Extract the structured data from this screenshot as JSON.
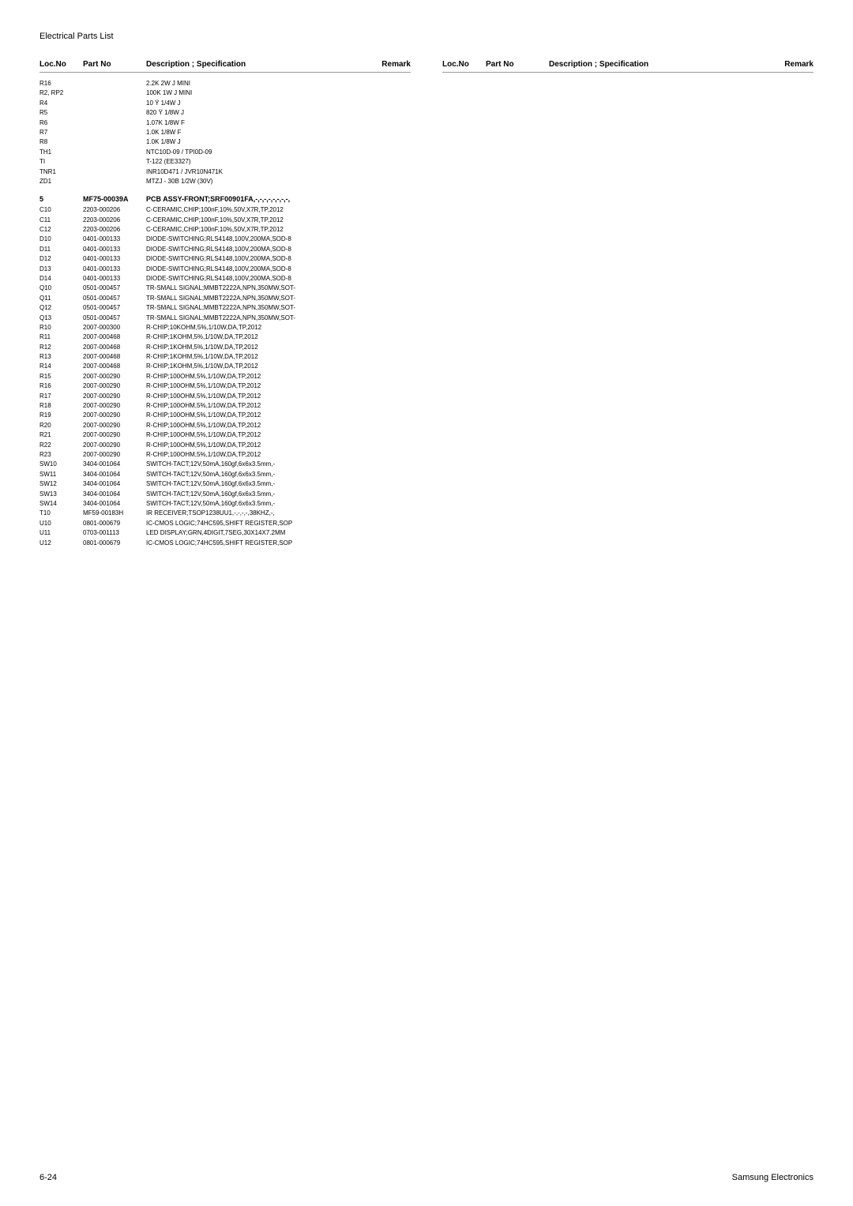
{
  "title": "Electrical Parts List",
  "headers": {
    "loc": "Loc.No",
    "part": "Part No",
    "desc": "Description ; Specification",
    "remark": "Remark"
  },
  "rows_a": [
    {
      "loc": "R16",
      "part": "",
      "desc": "2.2K 2W J MINI"
    },
    {
      "loc": "R2, RP2",
      "part": "",
      "desc": "100K 1W J MINI"
    },
    {
      "loc": "R4",
      "part": "",
      "desc": "10 Ÿ 1/4W J"
    },
    {
      "loc": "R5",
      "part": "",
      "desc": "820 Ÿ 1/8W J"
    },
    {
      "loc": "R6",
      "part": "",
      "desc": "1.07K 1/8W F"
    },
    {
      "loc": "R7",
      "part": "",
      "desc": "1.0K 1/8W F"
    },
    {
      "loc": "R8",
      "part": "",
      "desc": "1.0K 1/8W J"
    },
    {
      "loc": "TH1",
      "part": "",
      "desc": "NTC10D-09 / TPI0D-09"
    },
    {
      "loc": "TI",
      "part": "",
      "desc": "T-122 (EE3327)"
    },
    {
      "loc": "TNR1",
      "part": "",
      "desc": "INR10D471 / JVR10N471K"
    },
    {
      "loc": "ZD1",
      "part": "",
      "desc": "MTZJ - 30B 1/2W (30V)"
    }
  ],
  "section": {
    "loc": "5",
    "part": "MF75-00039A",
    "desc": "PCB ASSY-FRONT;SRF00901FA,-,-,-,-,-,-,-,-,"
  },
  "rows_b": [
    {
      "loc": "C10",
      "part": "2203-000206",
      "desc": "C-CERAMIC,CHIP;100nF,10%,50V,X7R,TP,2012"
    },
    {
      "loc": "C11",
      "part": "2203-000206",
      "desc": "C-CERAMIC,CHIP;100nF,10%,50V,X7R,TP,2012"
    },
    {
      "loc": "C12",
      "part": "2203-000206",
      "desc": "C-CERAMIC,CHIP;100nF,10%,50V,X7R,TP,2012"
    },
    {
      "loc": "D10",
      "part": "0401-000133",
      "desc": "DIODE-SWITCHING;RLS4148,100V,200MA,SOD-8"
    },
    {
      "loc": "D11",
      "part": "0401-000133",
      "desc": "DIODE-SWITCHING;RLS4148,100V,200MA,SOD-8"
    },
    {
      "loc": "D12",
      "part": "0401-000133",
      "desc": "DIODE-SWITCHING;RLS4148,100V,200MA,SOD-8"
    },
    {
      "loc": "D13",
      "part": "0401-000133",
      "desc": "DIODE-SWITCHING;RLS4148,100V,200MA,SOD-8"
    },
    {
      "loc": "D14",
      "part": "0401-000133",
      "desc": "DIODE-SWITCHING;RLS4148,100V,200MA,SOD-8"
    },
    {
      "loc": "Q10",
      "part": "0501-000457",
      "desc": "TR-SMALL SIGNAL;MMBT2222A,NPN,350MW,SOT-"
    },
    {
      "loc": "Q11",
      "part": "0501-000457",
      "desc": "TR-SMALL SIGNAL;MMBT2222A,NPN,350MW,SOT-"
    },
    {
      "loc": "Q12",
      "part": "0501-000457",
      "desc": "TR-SMALL SIGNAL;MMBT2222A,NPN,350MW,SOT-"
    },
    {
      "loc": "Q13",
      "part": "0501-000457",
      "desc": "TR-SMALL SIGNAL;MMBT2222A,NPN,350MW,SOT-"
    },
    {
      "loc": "R10",
      "part": "2007-000300",
      "desc": "R-CHIP;10KOHM,5%,1/10W,DA,TP,2012"
    },
    {
      "loc": "R11",
      "part": "2007-000468",
      "desc": "R-CHIP;1KOHM,5%,1/10W,DA,TP,2012"
    },
    {
      "loc": "R12",
      "part": "2007-000468",
      "desc": "R-CHIP;1KOHM,5%,1/10W,DA,TP,2012"
    },
    {
      "loc": "R13",
      "part": "2007-000468",
      "desc": "R-CHIP;1KOHM,5%,1/10W,DA,TP,2012"
    },
    {
      "loc": "R14",
      "part": "2007-000468",
      "desc": "R-CHIP;1KOHM,5%,1/10W,DA,TP,2012"
    },
    {
      "loc": "R15",
      "part": "2007-000290",
      "desc": "R-CHIP;100OHM,5%,1/10W,DA,TP,2012"
    },
    {
      "loc": "R16",
      "part": "2007-000290",
      "desc": "R-CHIP;100OHM,5%,1/10W,DA,TP,2012"
    },
    {
      "loc": "R17",
      "part": "2007-000290",
      "desc": "R-CHIP;100OHM,5%,1/10W,DA,TP,2012"
    },
    {
      "loc": "R18",
      "part": "2007-000290",
      "desc": "R-CHIP;100OHM,5%,1/10W,DA,TP,2012"
    },
    {
      "loc": "R19",
      "part": "2007-000290",
      "desc": "R-CHIP;100OHM,5%,1/10W,DA,TP,2012"
    },
    {
      "loc": "R20",
      "part": "2007-000290",
      "desc": "R-CHIP;100OHM,5%,1/10W,DA,TP,2012"
    },
    {
      "loc": "R21",
      "part": "2007-000290",
      "desc": "R-CHIP;100OHM,5%,1/10W,DA,TP,2012"
    },
    {
      "loc": "R22",
      "part": "2007-000290",
      "desc": "R-CHIP;100OHM,5%,1/10W,DA,TP,2012"
    },
    {
      "loc": "R23",
      "part": "2007-000290",
      "desc": "R-CHIP;100OHM,5%,1/10W,DA,TP,2012"
    },
    {
      "loc": "SW10",
      "part": "3404-001064",
      "desc": "SWITCH-TACT;12V,50mA,160gf,6x6x3.5mm,-"
    },
    {
      "loc": "SW11",
      "part": "3404-001064",
      "desc": "SWITCH-TACT;12V,50mA,160gf,6x6x3.5mm,-"
    },
    {
      "loc": "SW12",
      "part": "3404-001064",
      "desc": "SWITCH-TACT;12V,50mA,160gf,6x6x3.5mm,-"
    },
    {
      "loc": "SW13",
      "part": "3404-001064",
      "desc": "SWITCH-TACT;12V,50mA,160gf,6x6x3.5mm,-"
    },
    {
      "loc": "SW14",
      "part": "3404-001064",
      "desc": "SWITCH-TACT;12V,50mA,160gf,6x6x3.5mm,-"
    },
    {
      "loc": "T10",
      "part": "MF59-00183H",
      "desc": "IR RECEIVER;TSOP1238UU1,-,-,-,-,38KHZ,-,"
    },
    {
      "loc": "U10",
      "part": "0801-000679",
      "desc": "IC-CMOS LOGIC;74HC595,SHIFT REGISTER,SOP"
    },
    {
      "loc": "U11",
      "part": "0703-001113",
      "desc": "LED DISPLAY;GRN,4DIGIT,7SEG,30X14X7.2MM"
    },
    {
      "loc": "U12",
      "part": "0801-000679",
      "desc": "IC-CMOS LOGIC;74HC595,SHIFT REGISTER,SOP"
    }
  ],
  "footer": {
    "left": "6-24",
    "right": "Samsung Electronics"
  }
}
